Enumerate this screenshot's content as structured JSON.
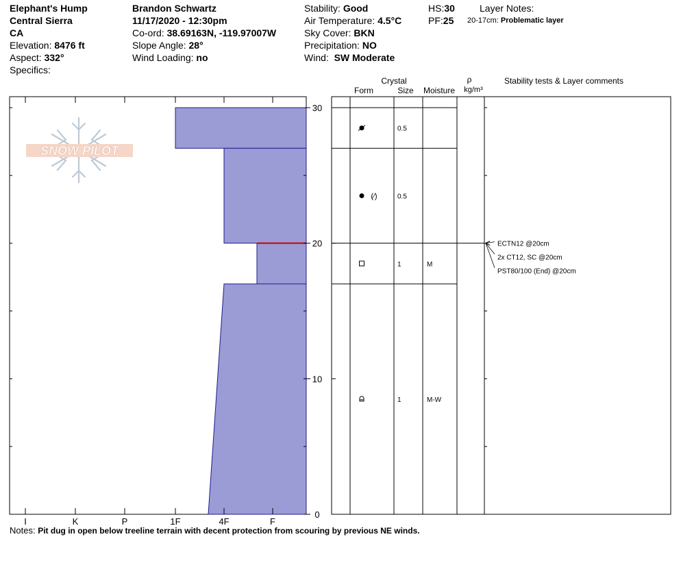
{
  "header": {
    "location": "Elephant's Hump",
    "range": "Central Sierra",
    "state": "CA",
    "elevation_label": "Elevation:",
    "elevation": "8476 ft",
    "aspect_label": "Aspect:",
    "aspect": "332°",
    "specifics_label": "Specifics:",
    "observer": "Brandon Schwartz",
    "datetime": "11/17/2020 - 12:30pm",
    "coord_label": "Co-ord:",
    "coord": "38.69163N, -119.97007W",
    "slope_label": "Slope Angle:",
    "slope": "28°",
    "wind_loading_label": "Wind Loading:",
    "wind_loading": "no",
    "stability_label": "Stability:",
    "stability": "Good",
    "air_temp_label": "Air Temperature:",
    "air_temp": "4.5°C",
    "sky_label": "Sky Cover:",
    "sky": "BKN",
    "precip_label": "Precipitation:",
    "precip": "NO",
    "wind_label": "Wind:",
    "wind": "SW Moderate",
    "hs_label": "HS:",
    "hs": "30",
    "pf_label": "PF:",
    "pf": "25",
    "layer_notes_label": "Layer Notes:",
    "layer_note_range": "20-17cm:",
    "layer_note_text": "Problematic layer"
  },
  "logo_text": "SNOW PILOT",
  "table_headers": {
    "crystal": "Crystal",
    "form": "Form",
    "size": "Size",
    "moisture": "Moisture",
    "rho": "ρ",
    "density_unit": "kg/m³",
    "tests": "Stability tests & Layer comments"
  },
  "notes_label": "Notes:",
  "notes": "Pit dug in open below treeline terrain with decent protection from scouring by previous NE winds.",
  "colors": {
    "layer_fill": "#9b9bd6",
    "layer_stroke": "#1c1c8c",
    "weak_layer": "#cc0000"
  },
  "chart_data": {
    "type": "snow_profile",
    "y_axis": {
      "unit": "cm",
      "range": [
        0,
        30
      ],
      "ticks": [
        0,
        10,
        20,
        30
      ]
    },
    "hardness_scale": [
      "I",
      "K",
      "P",
      "1F",
      "4F",
      "F"
    ],
    "layers": [
      {
        "top": 30,
        "bottom": 27,
        "hardness_top": "1F",
        "hardness_bottom": "1F",
        "form_icon": "rounding-faceted-icon",
        "size": "0.5",
        "moisture": ""
      },
      {
        "top": 27,
        "bottom": 20,
        "hardness_top": "4F",
        "hardness_bottom": "4F",
        "form_icon": "graupel-icon",
        "size": "0.5",
        "moisture": ""
      },
      {
        "top": 20,
        "bottom": 17,
        "hardness_top": "4F-F",
        "hardness_bottom": "4F-F",
        "form_icon": "faceted-crystal-icon",
        "size": "1",
        "moisture": "M"
      },
      {
        "top": 17,
        "bottom": 0,
        "hardness_top": "4F",
        "hardness_bottom": "1F-4F",
        "form_icon": "melt-form-icon",
        "size": "1",
        "moisture": "M-W"
      }
    ],
    "weak_layer_depth": 20,
    "tests": [
      {
        "text": "ECTN12 @20cm",
        "depth": 20
      },
      {
        "text": "2x CT12, SC @20cm",
        "depth": 20
      },
      {
        "text": "PST80/100 (End) @20cm",
        "depth": 20
      }
    ]
  }
}
